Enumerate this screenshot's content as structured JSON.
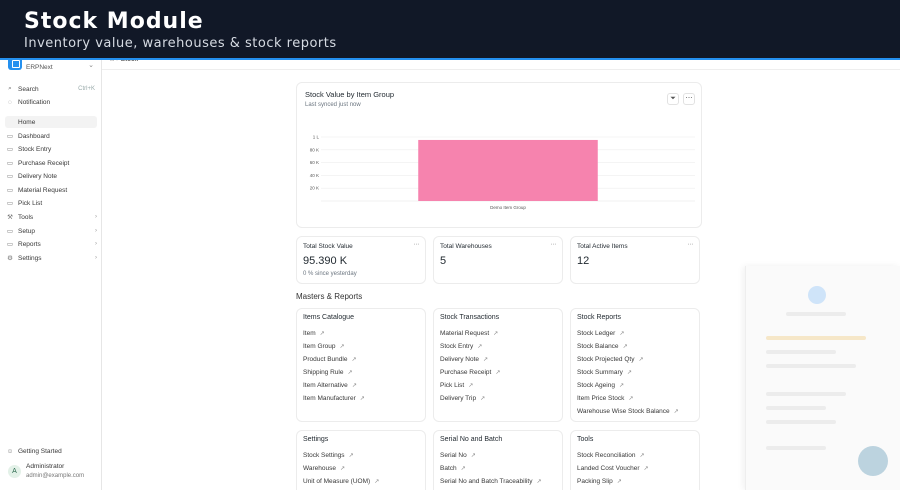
{
  "banner": {
    "title": "Stock Module",
    "subtitle": "Inventory value, warehouses & stock reports"
  },
  "breadcrumb": {
    "current": "Stock"
  },
  "app": {
    "name": "ERPNext"
  },
  "sidebar": {
    "search": "Search",
    "search_shortcut": "Ctrl+K",
    "notification": "Notification",
    "items": [
      {
        "label": "Home",
        "icon": "home-icon"
      },
      {
        "label": "Dashboard",
        "icon": "dashboard-icon"
      },
      {
        "label": "Stock Entry",
        "icon": "list-icon"
      },
      {
        "label": "Purchase Receipt",
        "icon": "list-icon"
      },
      {
        "label": "Delivery Note",
        "icon": "list-icon"
      },
      {
        "label": "Material Request",
        "icon": "list-icon"
      },
      {
        "label": "Pick List",
        "icon": "list-icon"
      },
      {
        "label": "Tools",
        "icon": "tools-icon"
      },
      {
        "label": "Setup",
        "icon": "setup-icon"
      },
      {
        "label": "Reports",
        "icon": "reports-icon"
      },
      {
        "label": "Settings",
        "icon": "settings-icon"
      }
    ],
    "getting_started": "Getting Started"
  },
  "user": {
    "initial": "A",
    "name": "Administrator",
    "email": "admin@example.com"
  },
  "chart_card": {
    "title": "Stock Value by Item Group",
    "subtitle": "Last synced just now"
  },
  "chart_data": {
    "type": "bar",
    "title": "Stock Value by Item Group",
    "categories": [
      "Demo Item Group"
    ],
    "values": [
      95390
    ],
    "ylim": [
      0,
      100000
    ],
    "yticks": [
      20000,
      40000,
      60000,
      80000,
      100000
    ],
    "ytick_labels": [
      "20 K",
      "40 K",
      "60 K",
      "80 K",
      "1 L"
    ],
    "grid": true,
    "color": "#f683ae"
  },
  "stats": [
    {
      "title": "Total Stock Value",
      "value": "95.390 K",
      "foot": "0 % since yesterday"
    },
    {
      "title": "Total Warehouses",
      "value": "5",
      "foot": ""
    },
    {
      "title": "Total Active Items",
      "value": "12",
      "foot": ""
    }
  ],
  "section_title": "Masters & Reports",
  "modules": [
    {
      "title": "Items Catalogue",
      "links": [
        "Item",
        "Item Group",
        "Product Bundle",
        "Shipping Rule",
        "Item Alternative",
        "Item Manufacturer"
      ]
    },
    {
      "title": "Stock Transactions",
      "links": [
        "Material Request",
        "Stock Entry",
        "Delivery Note",
        "Purchase Receipt",
        "Pick List",
        "Delivery Trip"
      ]
    },
    {
      "title": "Stock Reports",
      "links": [
        "Stock Ledger",
        "Stock Balance",
        "Stock Projected Qty",
        "Stock Summary",
        "Stock Ageing",
        "Item Price Stock",
        "Warehouse Wise Stock Balance"
      ]
    },
    {
      "title": "Settings",
      "links": [
        "Stock Settings",
        "Warehouse",
        "Unit of Measure (UOM)"
      ]
    },
    {
      "title": "Serial No and Batch",
      "links": [
        "Serial No",
        "Batch",
        "Serial No and Batch Traceability"
      ]
    },
    {
      "title": "Tools",
      "links": [
        "Stock Reconciliation",
        "Landed Cost Voucher",
        "Packing Slip"
      ]
    }
  ],
  "colors": {
    "accent": "#2490ef",
    "banner": "#111827",
    "bar": "#f683ae"
  }
}
